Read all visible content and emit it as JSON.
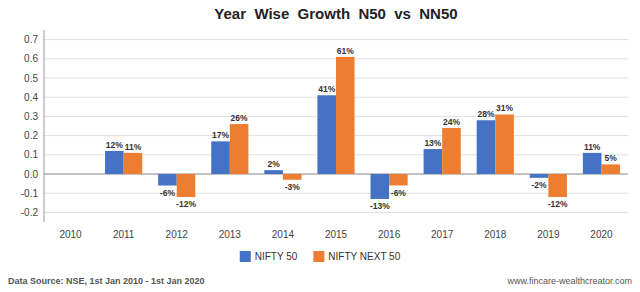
{
  "chart_data": {
    "type": "bar",
    "title": "Year  Wise  Growth  N50  vs  NN50",
    "categories": [
      "2010",
      "2011",
      "2012",
      "2013",
      "2014",
      "2015",
      "2016",
      "2017",
      "2018",
      "2019",
      "2020"
    ],
    "series": [
      {
        "name": "NIFTY 50",
        "color": "#4472C4",
        "values": [
          0,
          0.12,
          -0.06,
          0.17,
          0.02,
          0.41,
          -0.13,
          0.13,
          0.28,
          -0.02,
          0.11
        ],
        "value_labels": [
          null,
          "12%",
          "-6%",
          "17%",
          "2%",
          "41%",
          "-13%",
          "13%",
          "28%",
          "-2%",
          "11%"
        ]
      },
      {
        "name": "NIFTY NEXT 50",
        "color": "#ED7D31",
        "values": [
          0,
          0.11,
          -0.12,
          0.26,
          -0.03,
          0.61,
          -0.06,
          0.24,
          0.31,
          -0.12,
          0.05
        ],
        "value_labels": [
          null,
          "11%",
          "-12%",
          "26%",
          "-3%",
          "61%",
          "-6%",
          "24%",
          "31%",
          "-12%",
          "5%"
        ]
      }
    ],
    "ylim": [
      -0.25,
      0.75
    ],
    "yticks": [
      -0.2,
      -0.1,
      {
        "value": 0.0,
        "label": "0.0"
      },
      0.1,
      0.2,
      0.3,
      0.4,
      0.5,
      0.6,
      0.7
    ],
    "grid": true,
    "legend": "bottom",
    "data_labels": true,
    "annotations": [
      "Data Source: NSE, 1st Jan 2010 - 1st Jan 2020",
      "www.fincare-wealthcreator.com"
    ]
  }
}
